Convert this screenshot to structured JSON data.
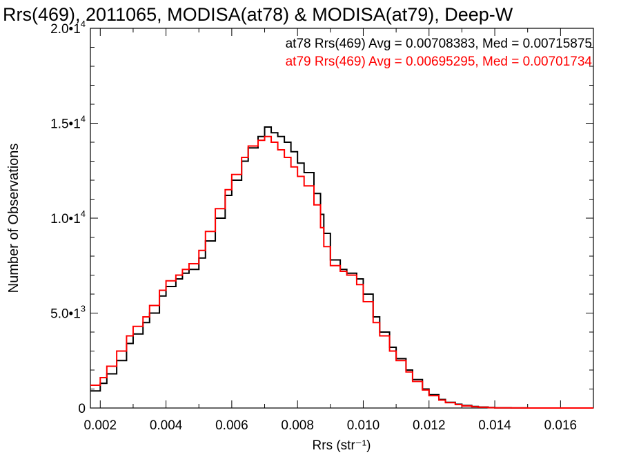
{
  "chart_data": {
    "type": "line",
    "title": "Rrs(469), 2011065, MODISA(at78) & MODISA(at79), Deep-W",
    "xlabel": "Rrs (str⁻¹)",
    "ylabel": "Number of Observations",
    "xlim": [
      0.0017,
      0.017
    ],
    "ylim": [
      0,
      20000
    ],
    "step": true,
    "grid": false,
    "x_ticks": [
      {
        "value": 0.002,
        "label": "0.002"
      },
      {
        "value": 0.004,
        "label": "0.004"
      },
      {
        "value": 0.006,
        "label": "0.006"
      },
      {
        "value": 0.008,
        "label": "0.008"
      },
      {
        "value": 0.01,
        "label": "0.010"
      },
      {
        "value": 0.012,
        "label": "0.012"
      },
      {
        "value": 0.014,
        "label": "0.014"
      },
      {
        "value": 0.016,
        "label": "0.016"
      }
    ],
    "y_ticks": [
      {
        "value": 0,
        "mantissa": "0",
        "exp": ""
      },
      {
        "value": 5000,
        "mantissa": "5.0•1",
        "exp": "3"
      },
      {
        "value": 10000,
        "mantissa": "1.0•1",
        "exp": "4"
      },
      {
        "value": 15000,
        "mantissa": "1.5•1",
        "exp": "4"
      },
      {
        "value": 20000,
        "mantissa": "2.0•1",
        "exp": "4"
      }
    ],
    "annotations": [
      {
        "text": "at78 Rrs(469) Avg = 0.00708383, Med = 0.00715875",
        "color": "#000000"
      },
      {
        "text": "at79 Rrs(469) Avg = 0.00695295, Med = 0.00701734",
        "color": "#ff0000"
      }
    ],
    "series": [
      {
        "color": "#000000",
        "points": [
          [
            0.0017,
            900
          ],
          [
            0.002,
            1300
          ],
          [
            0.0022,
            1800
          ],
          [
            0.0025,
            2500
          ],
          [
            0.0028,
            3400
          ],
          [
            0.003,
            3900
          ],
          [
            0.0033,
            4500
          ],
          [
            0.0035,
            5000
          ],
          [
            0.0038,
            5900
          ],
          [
            0.004,
            6400
          ],
          [
            0.0043,
            6800
          ],
          [
            0.0045,
            7100
          ],
          [
            0.0047,
            7300
          ],
          [
            0.005,
            7900
          ],
          [
            0.0052,
            8800
          ],
          [
            0.0055,
            10000
          ],
          [
            0.0058,
            11200
          ],
          [
            0.006,
            12000
          ],
          [
            0.0063,
            13000
          ],
          [
            0.0065,
            13700
          ],
          [
            0.0068,
            14300
          ],
          [
            0.007,
            14800
          ],
          [
            0.0072,
            14500
          ],
          [
            0.0074,
            14300
          ],
          [
            0.0076,
            14000
          ],
          [
            0.0078,
            13500
          ],
          [
            0.008,
            12900
          ],
          [
            0.0082,
            12400
          ],
          [
            0.0085,
            11300
          ],
          [
            0.0087,
            10200
          ],
          [
            0.0088,
            9200
          ],
          [
            0.009,
            7800
          ],
          [
            0.0093,
            7300
          ],
          [
            0.0095,
            7100
          ],
          [
            0.0098,
            6800
          ],
          [
            0.01,
            6000
          ],
          [
            0.0103,
            4800
          ],
          [
            0.0105,
            4000
          ],
          [
            0.0108,
            3200
          ],
          [
            0.011,
            2600
          ],
          [
            0.0113,
            2000
          ],
          [
            0.0115,
            1500
          ],
          [
            0.0118,
            1000
          ],
          [
            0.012,
            700
          ],
          [
            0.0123,
            450
          ],
          [
            0.0125,
            300
          ],
          [
            0.0128,
            200
          ],
          [
            0.013,
            130
          ],
          [
            0.0133,
            80
          ],
          [
            0.0135,
            50
          ],
          [
            0.0138,
            25
          ],
          [
            0.014,
            10
          ],
          [
            0.0145,
            5
          ],
          [
            0.015,
            0
          ],
          [
            0.017,
            0
          ]
        ]
      },
      {
        "color": "#ff0000",
        "points": [
          [
            0.0017,
            1200
          ],
          [
            0.002,
            1600
          ],
          [
            0.0022,
            2200
          ],
          [
            0.0025,
            3000
          ],
          [
            0.0028,
            3800
          ],
          [
            0.003,
            4300
          ],
          [
            0.0033,
            4800
          ],
          [
            0.0035,
            5400
          ],
          [
            0.0038,
            6200
          ],
          [
            0.004,
            6700
          ],
          [
            0.0043,
            7000
          ],
          [
            0.0045,
            7300
          ],
          [
            0.0047,
            7600
          ],
          [
            0.005,
            8300
          ],
          [
            0.0052,
            9300
          ],
          [
            0.0055,
            10500
          ],
          [
            0.0058,
            11500
          ],
          [
            0.006,
            12300
          ],
          [
            0.0063,
            13200
          ],
          [
            0.0065,
            13800
          ],
          [
            0.0068,
            14100
          ],
          [
            0.007,
            14300
          ],
          [
            0.0072,
            14000
          ],
          [
            0.0074,
            13600
          ],
          [
            0.0076,
            13200
          ],
          [
            0.0078,
            12700
          ],
          [
            0.008,
            12200
          ],
          [
            0.0082,
            11700
          ],
          [
            0.0085,
            10700
          ],
          [
            0.0087,
            9500
          ],
          [
            0.0088,
            8500
          ],
          [
            0.009,
            7500
          ],
          [
            0.0093,
            7200
          ],
          [
            0.0095,
            7000
          ],
          [
            0.0098,
            6500
          ],
          [
            0.01,
            5600
          ],
          [
            0.0103,
            4500
          ],
          [
            0.0105,
            3800
          ],
          [
            0.0108,
            3000
          ],
          [
            0.011,
            2500
          ],
          [
            0.0113,
            1900
          ],
          [
            0.0115,
            1400
          ],
          [
            0.0118,
            950
          ],
          [
            0.012,
            650
          ],
          [
            0.0123,
            420
          ],
          [
            0.0125,
            280
          ],
          [
            0.0128,
            180
          ],
          [
            0.013,
            110
          ],
          [
            0.0133,
            70
          ],
          [
            0.0135,
            40
          ],
          [
            0.0138,
            20
          ],
          [
            0.014,
            8
          ],
          [
            0.0145,
            3
          ],
          [
            0.015,
            0
          ],
          [
            0.017,
            0
          ]
        ]
      }
    ]
  }
}
